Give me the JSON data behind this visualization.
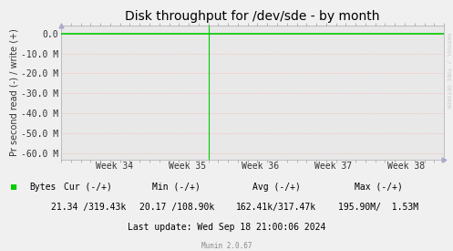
{
  "title": "Disk throughput for /dev/sde - by month",
  "ylabel": "Pr second read (-) / write (+)",
  "background_color": "#f0f0f0",
  "plot_bg_color": "#e8e8e8",
  "grid_color": "#ffaaaa",
  "ylim": [
    -63000000,
    4200000
  ],
  "yticks": [
    0,
    -10000000,
    -20000000,
    -30000000,
    -40000000,
    -50000000,
    -60000000
  ],
  "ytick_labels": [
    "0.0",
    "-10.0 M",
    "-20.0 M",
    "-30.0 M",
    "-40.0 M",
    "-50.0 M",
    "-60.0 M"
  ],
  "xtick_labels": [
    "Week 34",
    "Week 35",
    "Week 36",
    "Week 37",
    "Week 38"
  ],
  "xtick_positions": [
    0.14,
    0.33,
    0.52,
    0.71,
    0.9
  ],
  "green_line_x": 0.385,
  "legend_label": "Bytes",
  "legend_color": "#00cc00",
  "cur_label": "Cur (-/+)",
  "cur_val": "21.34 /319.43k",
  "min_label": "Min (-/+)",
  "min_val": "20.17 /108.90k",
  "avg_label": "Avg (-/+)",
  "avg_val": "162.41k/317.47k",
  "max_label": "Max (-/+)",
  "max_val": "195.90M/  1.53M",
  "last_update": "Last update: Wed Sep 18 21:00:06 2024",
  "munin_label": "Munin 2.0.67",
  "rrdtool_label": "RRDTOOL / TOBI OETIKER",
  "line_color": "#00cc00",
  "flat_line_color": "#00cc00",
  "title_fontsize": 10,
  "axis_fontsize": 7,
  "tick_fontsize": 7,
  "legend_fontsize": 7,
  "border_color": "#aaaaaa",
  "arrow_color": "#aaaacc"
}
